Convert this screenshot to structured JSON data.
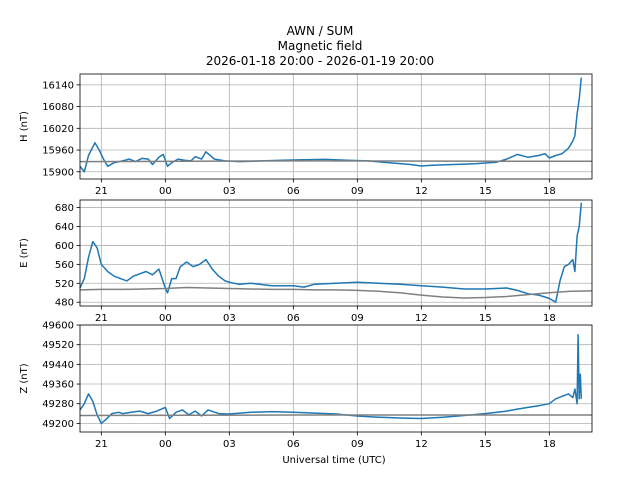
{
  "figure": {
    "title_line1": "AWN / SUM",
    "title_line2": "Magnetic field",
    "title_line3": "2026-01-18 20:00 - 2026-01-19 20:00",
    "xlabel": "Universal time (UTC)"
  },
  "colors": {
    "data": "#1f77b4",
    "baseline": "#808080",
    "grid": "#b0b0b0"
  },
  "chart_data": [
    {
      "type": "line",
      "ylabel": "H (nT)",
      "xlim": [
        20,
        44
      ],
      "ylim": [
        15880,
        16170
      ],
      "xticks": [
        21,
        24,
        27,
        30,
        33,
        36,
        39,
        42
      ],
      "xtick_labels": [
        "21",
        "00",
        "03",
        "06",
        "09",
        "12",
        "15",
        "18"
      ],
      "yticks": [
        15900,
        15960,
        16020,
        16080,
        16140
      ],
      "grid": true,
      "series": [
        {
          "role": "data",
          "x": [
            20.0,
            20.2,
            20.4,
            20.7,
            20.9,
            21.1,
            21.3,
            21.6,
            22.0,
            22.3,
            22.6,
            22.9,
            23.2,
            23.4,
            23.7,
            23.9,
            24.1,
            24.3,
            24.6,
            24.9,
            25.2,
            25.4,
            25.7,
            25.9,
            26.3,
            26.8,
            27.5,
            28.5,
            29.5,
            30.5,
            31.5,
            32.5,
            33.5,
            34.5,
            35.5,
            36.0,
            36.5,
            37.5,
            38.5,
            39.5,
            40.0,
            40.5,
            41.0,
            41.5,
            41.8,
            42.0,
            42.3,
            42.6,
            42.9,
            43.1,
            43.2,
            43.3,
            43.4,
            43.5
          ],
          "y": [
            15915,
            15900,
            15945,
            15980,
            15960,
            15935,
            15915,
            15925,
            15930,
            15935,
            15928,
            15937,
            15935,
            15920,
            15940,
            15948,
            15915,
            15925,
            15935,
            15932,
            15930,
            15942,
            15935,
            15955,
            15935,
            15930,
            15928,
            15930,
            15932,
            15933,
            15934,
            15932,
            15930,
            15925,
            15920,
            15916,
            15918,
            15920,
            15922,
            15926,
            15935,
            15948,
            15940,
            15945,
            15950,
            15938,
            15945,
            15950,
            15965,
            15985,
            16000,
            16060,
            16100,
            16160
          ]
        },
        {
          "role": "baseline",
          "x": [
            20,
            30,
            44
          ],
          "y": [
            15928,
            15930,
            15929
          ]
        }
      ]
    },
    {
      "type": "line",
      "ylabel": "E (nT)",
      "xlim": [
        20,
        44
      ],
      "ylim": [
        472,
        696
      ],
      "xticks": [
        21,
        24,
        27,
        30,
        33,
        36,
        39,
        42
      ],
      "xtick_labels": [
        "21",
        "00",
        "03",
        "06",
        "09",
        "12",
        "15",
        "18"
      ],
      "yticks": [
        480,
        520,
        560,
        600,
        640,
        680
      ],
      "grid": true,
      "series": [
        {
          "role": "data",
          "x": [
            20.0,
            20.2,
            20.4,
            20.6,
            20.8,
            21.0,
            21.3,
            21.6,
            21.9,
            22.2,
            22.5,
            22.8,
            23.1,
            23.4,
            23.7,
            24.0,
            24.1,
            24.3,
            24.5,
            24.7,
            25.0,
            25.3,
            25.6,
            25.9,
            26.2,
            26.5,
            26.8,
            27.2,
            27.5,
            28.0,
            29.0,
            30.0,
            30.5,
            31.0,
            32.0,
            33.0,
            34.0,
            35.0,
            36.0,
            37.0,
            38.0,
            39.0,
            40.0,
            40.5,
            41.0,
            41.5,
            42.0,
            42.3,
            42.5,
            42.7,
            42.9,
            43.1,
            43.2,
            43.3,
            43.4,
            43.5
          ],
          "y": [
            510,
            530,
            575,
            608,
            595,
            560,
            545,
            535,
            530,
            525,
            535,
            540,
            545,
            538,
            550,
            510,
            500,
            530,
            530,
            555,
            565,
            555,
            560,
            570,
            550,
            535,
            525,
            520,
            518,
            520,
            515,
            515,
            512,
            518,
            520,
            522,
            520,
            518,
            515,
            512,
            508,
            508,
            510,
            505,
            498,
            495,
            488,
            480,
            525,
            555,
            560,
            570,
            545,
            620,
            640,
            690
          ]
        },
        {
          "role": "baseline",
          "x": [
            20,
            21,
            22,
            23,
            24,
            25,
            26,
            27,
            28,
            29,
            30,
            31,
            32,
            33,
            34,
            35,
            36,
            37,
            38,
            39,
            40,
            41,
            42,
            43,
            44
          ],
          "y": [
            506,
            507,
            507,
            508,
            509,
            511,
            510,
            509,
            508,
            507,
            507,
            506,
            506,
            505,
            503,
            500,
            495,
            491,
            489,
            490,
            492,
            496,
            500,
            503,
            504
          ]
        }
      ]
    },
    {
      "type": "line",
      "ylabel": "Z (nT)",
      "xlim": [
        20,
        44
      ],
      "ylim": [
        49165,
        49600
      ],
      "xticks": [
        21,
        24,
        27,
        30,
        33,
        36,
        39,
        42
      ],
      "xtick_labels": [
        "21",
        "00",
        "03",
        "06",
        "09",
        "12",
        "15",
        "18"
      ],
      "yticks": [
        49200,
        49280,
        49360,
        49440,
        49520,
        49600
      ],
      "grid": true,
      "series": [
        {
          "role": "data",
          "x": [
            20.0,
            20.2,
            20.4,
            20.6,
            20.8,
            21.0,
            21.2,
            21.5,
            21.8,
            22.0,
            22.4,
            22.8,
            23.2,
            23.6,
            24.0,
            24.2,
            24.5,
            24.8,
            25.1,
            25.4,
            25.7,
            26.0,
            26.5,
            27.0,
            28.0,
            29.0,
            30.0,
            31.0,
            32.0,
            33.0,
            34.0,
            35.0,
            36.0,
            37.0,
            38.0,
            39.0,
            40.0,
            40.5,
            41.0,
            41.5,
            42.0,
            42.3,
            42.6,
            42.9,
            43.1,
            43.2,
            43.3,
            43.35,
            43.4,
            43.45,
            43.5
          ],
          "y": [
            49255,
            49280,
            49320,
            49290,
            49235,
            49200,
            49215,
            49240,
            49245,
            49240,
            49245,
            49250,
            49240,
            49250,
            49265,
            49220,
            49245,
            49255,
            49235,
            49250,
            49230,
            49255,
            49240,
            49238,
            49245,
            49248,
            49245,
            49242,
            49238,
            49230,
            49225,
            49222,
            49220,
            49225,
            49232,
            49240,
            49250,
            49258,
            49265,
            49272,
            49280,
            49300,
            49310,
            49320,
            49305,
            49340,
            49280,
            49560,
            49300,
            49400,
            49300
          ]
        },
        {
          "role": "baseline",
          "x": [
            20,
            30,
            44
          ],
          "y": [
            49232,
            49234,
            49234
          ]
        }
      ]
    }
  ]
}
